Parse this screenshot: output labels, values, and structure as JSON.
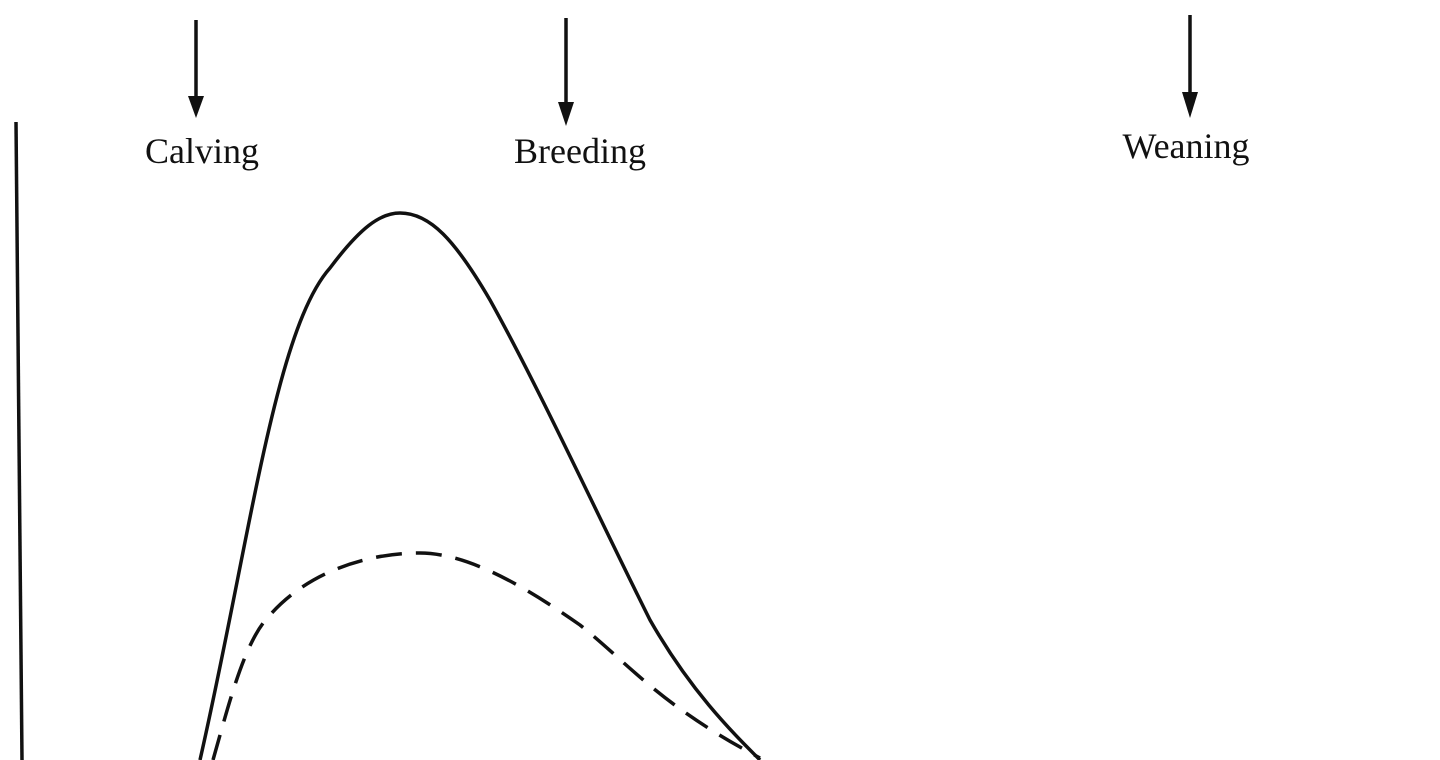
{
  "events": [
    {
      "label": "Calving"
    },
    {
      "label": "Breeding"
    },
    {
      "label": "Weaning"
    }
  ]
}
